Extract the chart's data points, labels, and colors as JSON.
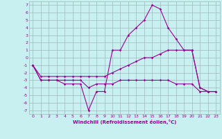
{
  "x_hours": [
    0,
    1,
    2,
    3,
    4,
    5,
    6,
    7,
    8,
    9,
    10,
    11,
    12,
    13,
    14,
    15,
    16,
    17,
    18,
    19,
    20,
    21,
    22,
    23
  ],
  "line1_y": [
    -1,
    -3,
    -3,
    -3,
    -3.5,
    -3.5,
    -3.5,
    -7,
    -4.5,
    -4.5,
    1,
    1,
    3,
    4,
    5,
    7,
    6.5,
    4,
    2.5,
    1,
    1,
    -4,
    -4.5,
    -4.5
  ],
  "line2_y": [
    -1,
    -2.5,
    -2.5,
    -2.5,
    -2.5,
    -2.5,
    -2.5,
    -2.5,
    -2.5,
    -2.5,
    -2,
    -1.5,
    -1,
    -0.5,
    0,
    0,
    0.5,
    1,
    1,
    1,
    1,
    -4,
    -4.5,
    -4.5
  ],
  "line3_y": [
    -1,
    -3,
    -3,
    -3,
    -3,
    -3,
    -3,
    -4,
    -3.5,
    -3.5,
    -3.5,
    -3,
    -3,
    -3,
    -3,
    -3,
    -3,
    -3,
    -3.5,
    -3.5,
    -3.5,
    -4.5,
    -4.5,
    -4.5
  ],
  "background_color": "#c8f0f0",
  "grid_color": "#a0b8b8",
  "line_color": "#990099",
  "xlabel": "Windchill (Refroidissement éolien,°C)",
  "ytick_labels": [
    "7",
    "6",
    "5",
    "4",
    "3",
    "2",
    "1",
    "0",
    "-1",
    "-2",
    "-3",
    "-4",
    "-5",
    "-6",
    "-7"
  ],
  "ytick_vals": [
    7,
    6,
    5,
    4,
    3,
    2,
    1,
    0,
    -1,
    -2,
    -3,
    -4,
    -5,
    -6,
    -7
  ],
  "xticks": [
    0,
    1,
    2,
    3,
    4,
    5,
    6,
    7,
    8,
    9,
    10,
    11,
    12,
    13,
    14,
    15,
    16,
    17,
    18,
    19,
    20,
    21,
    22,
    23
  ],
  "ylim": [
    -7.5,
    7.5
  ],
  "xlim": [
    -0.5,
    23.5
  ]
}
